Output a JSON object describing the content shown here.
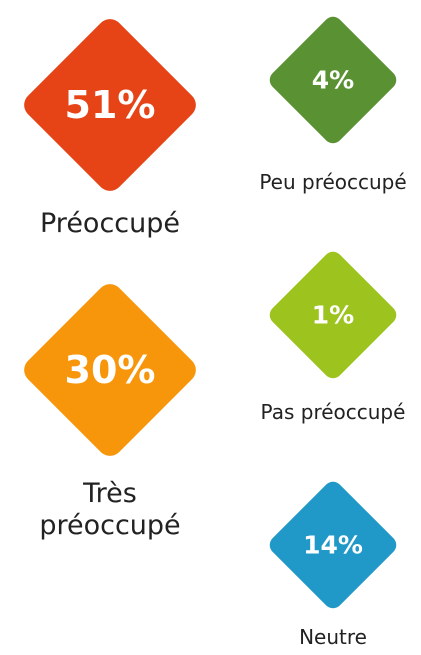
{
  "chart_data": {
    "type": "diamond",
    "categories": [
      "Préoccupé",
      "Peu préoccupé",
      "Très préoccupé",
      "Pas préoccupé",
      "Neutre"
    ],
    "values": [
      51,
      4,
      30,
      1,
      14
    ],
    "value_labels": [
      "51%",
      "4%",
      "30%",
      "1%",
      "14%"
    ],
    "colors": [
      "#e64316",
      "#5a9132",
      "#f7960b",
      "#9dc31f",
      "#2098c8"
    ]
  }
}
